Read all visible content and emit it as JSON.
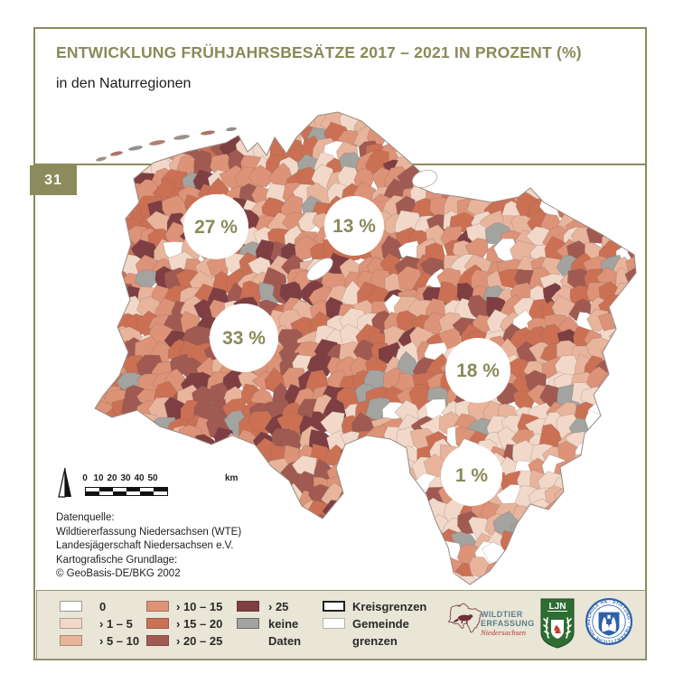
{
  "badge": {
    "number": "31"
  },
  "header": {
    "title": "ENTWICKLUNG FRÜHJAHRSBESÄTZE 2017 – 2021 IN PROZENT (%)",
    "subtitle": "in den Naturregionen"
  },
  "map": {
    "labels": [
      "27 %",
      "13 %",
      "33 %",
      "18 %",
      "1 %"
    ]
  },
  "chart_data": {
    "type": "choropleth_map",
    "title": "Entwicklung Frühjahrsbesätze 2017 – 2021 in Prozent (%)",
    "subtitle": "in den Naturregionen",
    "region_values_percent": [
      27,
      13,
      33,
      18,
      1
    ],
    "classes": [
      "0",
      "› 1 – 5",
      "› 5 – 10",
      "› 10 – 15",
      "› 15 – 20",
      "› 20 – 25",
      "› 25",
      "keine Daten"
    ],
    "class_colors": [
      "#ffffff",
      "#f2d8c9",
      "#e9b49c",
      "#dd9378",
      "#cc7054",
      "#a15a51",
      "#7e3e42",
      "#a3a3a0"
    ]
  },
  "scalebar": {
    "ticks": [
      "0",
      "10",
      "20",
      "30",
      "40",
      "50"
    ],
    "unit": "km"
  },
  "source": {
    "lines": [
      "Datenquelle:",
      "Wildtiererfassung Niedersachsen (WTE)",
      "Landesjägerschaft Niedersachsen e.V.",
      "Kartografische Grundlage:",
      "© GeoBasis-DE/BKG 2002"
    ]
  },
  "legend": {
    "classes": [
      {
        "label": "0",
        "color": "#ffffff"
      },
      {
        "label": "› 1 – 5",
        "color": "#f2d8c9"
      },
      {
        "label": "› 5 – 10",
        "color": "#e9b49c"
      },
      {
        "label": "› 10 – 15",
        "color": "#dd9378"
      },
      {
        "label": "› 15 – 20",
        "color": "#cc7054"
      },
      {
        "label": "› 20 – 25",
        "color": "#a15a51"
      },
      {
        "label": "› 25",
        "color": "#7e3e42"
      },
      {
        "label": "keine",
        "label2": "Daten",
        "color": "#a3a3a0"
      }
    ],
    "boundaries": [
      {
        "label": "Kreisgrenzen"
      },
      {
        "line1": "Gemeinde",
        "line2": "grenzen"
      }
    ]
  },
  "logos": {
    "wildtier": {
      "line1": "WILDTIER",
      "line2": "ERFASSUNG",
      "line3": "Niedersachsen"
    },
    "ljn": {
      "text": "LJN"
    },
    "stamp": {
      "ring_text": "· STIFTUNG · TIERÄRZTLICHE HOCHSCHULE HANNOVER ·"
    }
  },
  "colors": {
    "accent_olive": "#8b8b5e",
    "legend_bg": "#e9e5d7",
    "ljn_green": "#2e6e33",
    "stamp_blue": "#2d62a8",
    "wildtier_maroon": "#7d3f42"
  }
}
